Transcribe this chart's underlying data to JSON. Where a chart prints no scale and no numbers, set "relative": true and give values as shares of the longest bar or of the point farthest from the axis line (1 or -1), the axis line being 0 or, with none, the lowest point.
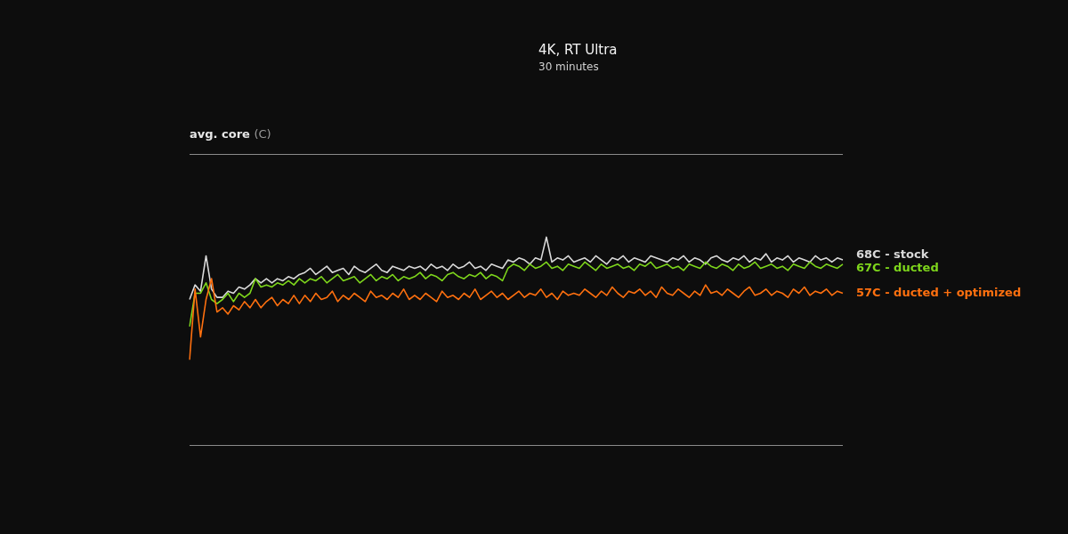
{
  "chart_data": {
    "type": "line",
    "title": "4K, RT Ultra",
    "subtitle": "30 minutes",
    "annotations": [
      "avg. core (C)"
    ],
    "relative": true,
    "categories": [
      null,
      null,
      null,
      null,
      null,
      null,
      null,
      null,
      null,
      null,
      null,
      null,
      null,
      null,
      null,
      null,
      null,
      null,
      null,
      null,
      null,
      null,
      null,
      null,
      null,
      null,
      null,
      null,
      null,
      null,
      null,
      null,
      null,
      null,
      null,
      null,
      null,
      null,
      null,
      null,
      null,
      null,
      null,
      null,
      null,
      null,
      null,
      null,
      null,
      null,
      null,
      null,
      null,
      null,
      null,
      null,
      null,
      null,
      null,
      null,
      null,
      null,
      null,
      null,
      null,
      null,
      null,
      null,
      null,
      null,
      null,
      null,
      null,
      null,
      null,
      null,
      null,
      null,
      null,
      null,
      null,
      null,
      null,
      null,
      null,
      null,
      null,
      null,
      null,
      null,
      null,
      null,
      null,
      null,
      null,
      null,
      null,
      null,
      null,
      null,
      null,
      null,
      null,
      null,
      null,
      null,
      null,
      null,
      null,
      null,
      null,
      null,
      null,
      null,
      null,
      null,
      null,
      null,
      null,
      null
    ],
    "series": [
      {
        "name": "68C - stock",
        "color": "#d9d9d9",
        "values": [
          0.7,
          0.77,
          0.74,
          0.91,
          0.75,
          0.71,
          0.71,
          0.74,
          0.73,
          0.76,
          0.75,
          0.77,
          0.8,
          0.78,
          0.8,
          0.78,
          0.8,
          0.79,
          0.81,
          0.8,
          0.82,
          0.83,
          0.85,
          0.82,
          0.84,
          0.86,
          0.83,
          0.84,
          0.85,
          0.82,
          0.86,
          0.84,
          0.83,
          0.85,
          0.87,
          0.84,
          0.83,
          0.86,
          0.85,
          0.84,
          0.86,
          0.85,
          0.86,
          0.84,
          0.87,
          0.85,
          0.86,
          0.84,
          0.87,
          0.85,
          0.86,
          0.88,
          0.85,
          0.86,
          0.84,
          0.87,
          0.86,
          0.85,
          0.89,
          0.88,
          0.9,
          0.89,
          0.87,
          0.9,
          0.89,
          1.0,
          0.88,
          0.9,
          0.89,
          0.91,
          0.88,
          0.89,
          0.9,
          0.88,
          0.91,
          0.89,
          0.87,
          0.9,
          0.89,
          0.91,
          0.88,
          0.9,
          0.89,
          0.88,
          0.91,
          0.9,
          0.89,
          0.88,
          0.9,
          0.89,
          0.91,
          0.88,
          0.9,
          0.89,
          0.87,
          0.9,
          0.91,
          0.89,
          0.88,
          0.9,
          0.89,
          0.91,
          0.88,
          0.9,
          0.89,
          0.92,
          0.88,
          0.9,
          0.89,
          0.91,
          0.88,
          0.9,
          0.89,
          0.88,
          0.91,
          0.89,
          0.9,
          0.88,
          0.9,
          0.89
        ]
      },
      {
        "name": "67C - ducted",
        "color": "#7ed61c",
        "values": [
          0.57,
          0.73,
          0.73,
          0.78,
          0.7,
          0.68,
          0.7,
          0.73,
          0.69,
          0.73,
          0.71,
          0.73,
          0.8,
          0.76,
          0.77,
          0.76,
          0.78,
          0.77,
          0.79,
          0.77,
          0.8,
          0.78,
          0.8,
          0.79,
          0.81,
          0.78,
          0.8,
          0.82,
          0.79,
          0.8,
          0.81,
          0.78,
          0.8,
          0.82,
          0.79,
          0.81,
          0.8,
          0.82,
          0.79,
          0.81,
          0.8,
          0.81,
          0.83,
          0.8,
          0.82,
          0.81,
          0.79,
          0.82,
          0.83,
          0.81,
          0.8,
          0.82,
          0.81,
          0.83,
          0.8,
          0.82,
          0.81,
          0.79,
          0.85,
          0.87,
          0.86,
          0.84,
          0.87,
          0.85,
          0.86,
          0.88,
          0.85,
          0.86,
          0.84,
          0.87,
          0.86,
          0.85,
          0.88,
          0.86,
          0.84,
          0.87,
          0.85,
          0.86,
          0.87,
          0.85,
          0.86,
          0.84,
          0.87,
          0.86,
          0.88,
          0.85,
          0.86,
          0.87,
          0.85,
          0.86,
          0.84,
          0.87,
          0.86,
          0.85,
          0.88,
          0.86,
          0.85,
          0.87,
          0.86,
          0.84,
          0.87,
          0.85,
          0.86,
          0.88,
          0.85,
          0.86,
          0.87,
          0.85,
          0.86,
          0.84,
          0.87,
          0.86,
          0.85,
          0.88,
          0.86,
          0.85,
          0.87,
          0.86,
          0.85,
          0.87
        ]
      },
      {
        "name": "57C - ducted + optimized",
        "color": "#ff700f",
        "values": [
          0.41,
          0.75,
          0.52,
          0.7,
          0.8,
          0.64,
          0.66,
          0.63,
          0.67,
          0.65,
          0.69,
          0.66,
          0.7,
          0.66,
          0.69,
          0.71,
          0.67,
          0.7,
          0.68,
          0.72,
          0.68,
          0.72,
          0.69,
          0.73,
          0.7,
          0.71,
          0.74,
          0.69,
          0.72,
          0.7,
          0.73,
          0.71,
          0.69,
          0.74,
          0.71,
          0.72,
          0.7,
          0.73,
          0.71,
          0.75,
          0.7,
          0.72,
          0.7,
          0.73,
          0.71,
          0.69,
          0.74,
          0.71,
          0.72,
          0.7,
          0.73,
          0.71,
          0.75,
          0.7,
          0.72,
          0.74,
          0.71,
          0.73,
          0.7,
          0.72,
          0.74,
          0.71,
          0.73,
          0.72,
          0.75,
          0.71,
          0.73,
          0.7,
          0.74,
          0.72,
          0.73,
          0.72,
          0.75,
          0.73,
          0.71,
          0.74,
          0.72,
          0.76,
          0.73,
          0.71,
          0.74,
          0.73,
          0.75,
          0.72,
          0.74,
          0.71,
          0.76,
          0.73,
          0.72,
          0.75,
          0.73,
          0.71,
          0.74,
          0.72,
          0.77,
          0.73,
          0.74,
          0.72,
          0.75,
          0.73,
          0.71,
          0.74,
          0.76,
          0.72,
          0.73,
          0.75,
          0.72,
          0.74,
          0.73,
          0.71,
          0.75,
          0.73,
          0.76,
          0.72,
          0.74,
          0.73,
          0.75,
          0.72,
          0.74,
          0.73
        ]
      }
    ]
  }
}
